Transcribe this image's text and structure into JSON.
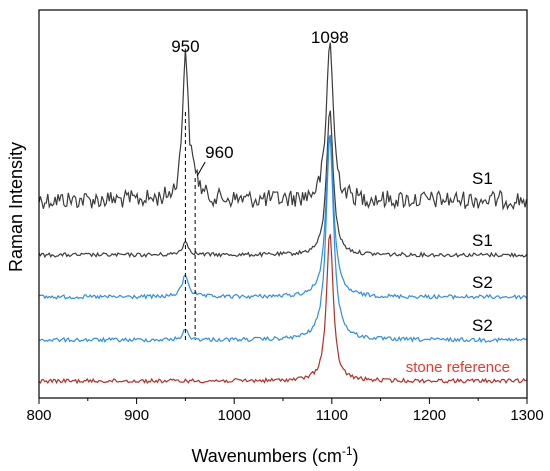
{
  "chart_data": {
    "type": "line",
    "title": "",
    "xlabel": "Wavenumbers (cm",
    "xlabel_sup": "-1",
    "xlabel_suffix": ")",
    "ylabel": "Raman Intensity",
    "xlim": [
      800,
      1300
    ],
    "x_ticks": [
      800,
      900,
      1000,
      1100,
      1200,
      1300
    ],
    "x_tick_labels": [
      "800",
      "900",
      "1000",
      "1100",
      "1200",
      "1300"
    ],
    "y_ticks_labeled": false,
    "grid": false,
    "legend": "none",
    "series": [
      {
        "name": "S1",
        "color": "#3c3c3c",
        "baseline": 200,
        "noise": 9,
        "peaks": [
          {
            "x": 950,
            "height": 150,
            "width": 3.5
          },
          {
            "x": 960,
            "height": 18,
            "width": 4
          },
          {
            "x": 1098,
            "height": 162,
            "width": 4
          }
        ]
      },
      {
        "name": "S1",
        "color": "#3c3c3c",
        "baseline": 255,
        "noise": 2,
        "peaks": [
          {
            "x": 950,
            "height": 13,
            "width": 4
          },
          {
            "x": 1098,
            "height": 148,
            "width": 4
          }
        ]
      },
      {
        "name": "S2",
        "color": "#2f8fe0",
        "baseline": 297,
        "noise": 2,
        "peaks": [
          {
            "x": 950,
            "height": 22,
            "width": 4
          },
          {
            "x": 1098,
            "height": 165,
            "width": 4.5
          }
        ]
      },
      {
        "name": "S2",
        "color": "#2f8fe0",
        "baseline": 340,
        "noise": 2,
        "peaks": [
          {
            "x": 950,
            "height": 10,
            "width": 3.5
          },
          {
            "x": 1098,
            "height": 205,
            "width": 4.5
          }
        ]
      },
      {
        "name": "stone reference",
        "color": "#b0302a",
        "label_color": "#e03c32",
        "baseline": 381,
        "noise": 2,
        "peaks": [
          {
            "x": 1098,
            "height": 150,
            "width": 4
          }
        ]
      }
    ],
    "annotations": [
      {
        "text": "950",
        "x": 950
      },
      {
        "text": "960",
        "x": 960
      },
      {
        "text": "1098",
        "x": 1098
      }
    ],
    "reference_lines": [
      {
        "x": 950,
        "style": "dashed"
      },
      {
        "x": 960,
        "style": "dashed"
      }
    ]
  }
}
